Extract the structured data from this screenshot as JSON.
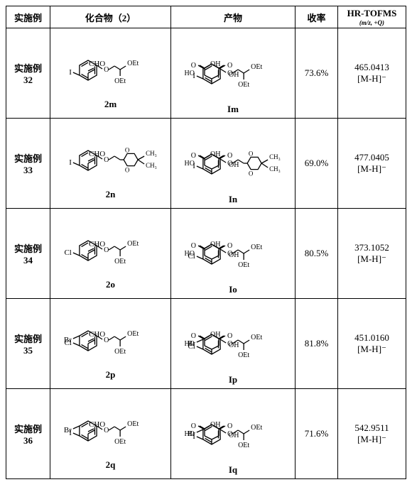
{
  "headers": {
    "example": "实施例",
    "compound": "化合物（2）",
    "product": "产物",
    "yield": "收率",
    "ms_title": "HR-TOFMS",
    "ms_sub": "(m/z, +Q)"
  },
  "rows": [
    {
      "ex_line1": "实施例",
      "ex_line2": "32",
      "cmp_label": "2m",
      "prod_label": "Im",
      "yield": "73.6%",
      "ms_line1": "465.0413",
      "ms_line2": "[M-H]⁻",
      "cmp": {
        "topLeft": "CHO_I",
        "chain": "OEtOEt"
      },
      "prod": {
        "topLeft": "diacid_I",
        "chain": "OEtOEt"
      }
    },
    {
      "ex_line1": "实施例",
      "ex_line2": "33",
      "cmp_label": "2n",
      "prod_label": "In",
      "yield": "69.0%",
      "ms_line1": "477.0405",
      "ms_line2": "[M-H]⁻",
      "cmp": {
        "topLeft": "CHO_I",
        "chain": "dioxane"
      },
      "prod": {
        "topLeft": "diacid_I",
        "chain": "dioxane"
      }
    },
    {
      "ex_line1": "实施例",
      "ex_line2": "34",
      "cmp_label": "2o",
      "prod_label": "Io",
      "yield": "80.5%",
      "ms_line1": "373.1052",
      "ms_line2": "[M-H]⁻",
      "cmp": {
        "topLeft": "CHO_Cl",
        "chain": "OEtOEt"
      },
      "prod": {
        "topLeft": "diacid_Cl",
        "chain": "OEtOEt"
      }
    },
    {
      "ex_line1": "实施例",
      "ex_line2": "35",
      "cmp_label": "2p",
      "prod_label": "Ip",
      "yield": "81.8%",
      "ms_line1": "451.0160",
      "ms_line2": "[M-H]⁻",
      "cmp": {
        "topLeft": "CHO_Cl",
        "chain": "OEtOEt",
        "br": true
      },
      "prod": {
        "topLeft": "diacid_Cl",
        "chain": "OEtOEt",
        "br": true
      }
    },
    {
      "ex_line1": "实施例",
      "ex_line2": "36",
      "cmp_label": "2q",
      "prod_label": "Iq",
      "yield": "71.6%",
      "ms_line1": "542.9511",
      "ms_line2": "[M-H]⁻",
      "cmp": {
        "topLeft": "CHO_I",
        "chain": "OEtOEt",
        "br": true
      },
      "prod": {
        "topLeft": "diacid_I",
        "chain": "OEtOEt",
        "br": true
      }
    }
  ],
  "style": {
    "stroke": "#000000",
    "strokeWidth": 1.3,
    "font": "11px Times New Roman",
    "boldFont": "bold 13px Times New Roman"
  }
}
